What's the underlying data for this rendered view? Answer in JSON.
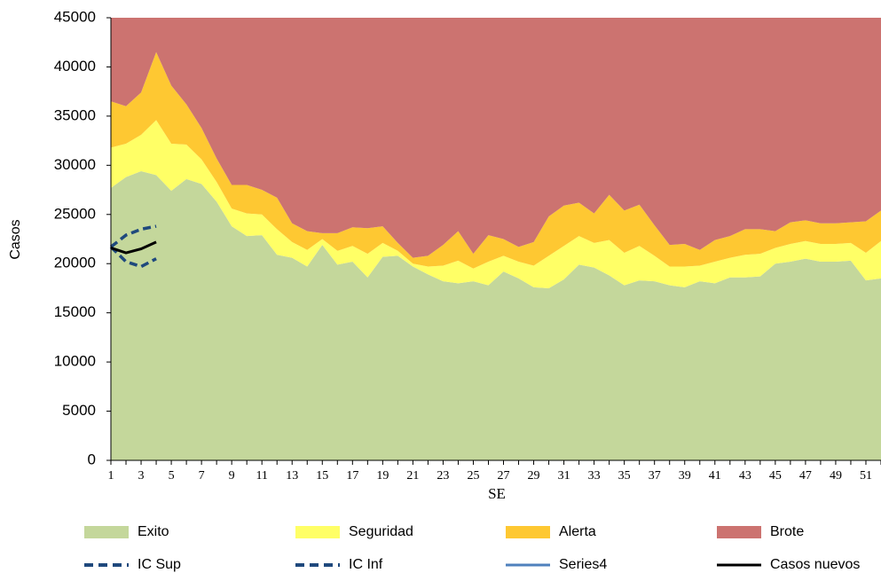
{
  "chart_data": {
    "type": "area",
    "ylabel": "Casos",
    "xlabel": "SE",
    "x": [
      1,
      2,
      3,
      4,
      5,
      6,
      7,
      8,
      9,
      10,
      11,
      12,
      13,
      14,
      15,
      16,
      17,
      18,
      19,
      20,
      21,
      22,
      23,
      24,
      25,
      26,
      27,
      28,
      29,
      30,
      31,
      32,
      33,
      34,
      35,
      36,
      37,
      38,
      39,
      40,
      41,
      42,
      43,
      44,
      45,
      46,
      47,
      48,
      49,
      50,
      51,
      52
    ],
    "xlim": [
      1,
      52
    ],
    "xticks": [
      1,
      3,
      5,
      7,
      9,
      11,
      13,
      15,
      17,
      19,
      21,
      23,
      25,
      27,
      29,
      31,
      33,
      35,
      37,
      39,
      41,
      43,
      45,
      47,
      49,
      51
    ],
    "ylim": [
      0,
      45000
    ],
    "yticks": [
      0,
      5000,
      10000,
      15000,
      20000,
      25000,
      30000,
      35000,
      40000,
      45000
    ],
    "series": [
      {
        "name": "Exito",
        "kind": "area",
        "color": "#c4d79b",
        "values": [
          27700,
          28800,
          29400,
          29000,
          27400,
          28600,
          28100,
          26300,
          23800,
          22800,
          22900,
          20900,
          20600,
          19700,
          21900,
          19900,
          20200,
          18600,
          20700,
          20800,
          19700,
          18900,
          18200,
          18000,
          18200,
          17800,
          19200,
          18500,
          17600,
          17500,
          18400,
          19900,
          19600,
          18800,
          17800,
          18300,
          18200,
          17800,
          17600,
          18200,
          18000,
          18600,
          18600,
          18700,
          20000,
          20200,
          20500,
          20200,
          20200,
          20300,
          18300,
          18500
        ]
      },
      {
        "name": "Seguridad",
        "kind": "area",
        "color": "#ffff66",
        "values": [
          4100,
          3400,
          3700,
          5600,
          4800,
          3500,
          2500,
          2000,
          1800,
          2300,
          2100,
          2600,
          1600,
          1700,
          600,
          1400,
          1600,
          2400,
          1400,
          500,
          300,
          800,
          1600,
          2300,
          1300,
          2400,
          1600,
          1700,
          2200,
          3300,
          3400,
          2900,
          2500,
          3600,
          3300,
          3500,
          2600,
          1900,
          2100,
          1600,
          2200,
          2000,
          2300,
          2300,
          1600,
          1800,
          1800,
          1800,
          1800,
          1800,
          2800,
          3800
        ]
      },
      {
        "name": "Alerta",
        "kind": "area",
        "color": "#fec832",
        "values": [
          4700,
          3800,
          4300,
          6900,
          5900,
          4100,
          3200,
          2400,
          2400,
          2900,
          2500,
          3200,
          1900,
          1900,
          600,
          1800,
          1900,
          2600,
          1700,
          800,
          600,
          1100,
          2100,
          3000,
          1500,
          2700,
          1700,
          1500,
          2400,
          4000,
          4100,
          3400,
          3000,
          4600,
          4300,
          4200,
          3100,
          2200,
          2300,
          1600,
          2200,
          2200,
          2600,
          2500,
          1700,
          2200,
          2100,
          2100,
          2100,
          2100,
          3200,
          3100
        ]
      },
      {
        "name": "Brote",
        "kind": "area",
        "color": "#cc7370",
        "values": [
          8500,
          9000,
          7600,
          3500,
          6900,
          8800,
          11200,
          14300,
          17000,
          17000,
          17500,
          18300,
          20900,
          21700,
          21900,
          21900,
          21300,
          21400,
          21200,
          22900,
          24400,
          24200,
          23100,
          21700,
          24000,
          22100,
          22500,
          23300,
          22800,
          20200,
          19100,
          18800,
          19900,
          18000,
          19600,
          19000,
          21100,
          23100,
          23000,
          23600,
          22600,
          22200,
          21500,
          21500,
          21700,
          20800,
          20600,
          20900,
          20900,
          20800,
          20700,
          19600
        ]
      },
      {
        "name": "IC Sup",
        "kind": "line",
        "dash": true,
        "color": "#1f497d",
        "values": [
          21700,
          22900,
          23500,
          23800,
          null,
          null,
          null,
          null,
          null,
          null,
          null,
          null,
          null,
          null,
          null,
          null,
          null,
          null,
          null,
          null,
          null,
          null,
          null,
          null,
          null,
          null,
          null,
          null,
          null,
          null,
          null,
          null,
          null,
          null,
          null,
          null,
          null,
          null,
          null,
          null,
          null,
          null,
          null,
          null,
          null,
          null,
          null,
          null,
          null,
          null,
          null,
          null
        ]
      },
      {
        "name": "IC Inf",
        "kind": "line",
        "dash": true,
        "color": "#1f497d",
        "values": [
          21700,
          20200,
          19700,
          20500,
          null,
          null,
          null,
          null,
          null,
          null,
          null,
          null,
          null,
          null,
          null,
          null,
          null,
          null,
          null,
          null,
          null,
          null,
          null,
          null,
          null,
          null,
          null,
          null,
          null,
          null,
          null,
          null,
          null,
          null,
          null,
          null,
          null,
          null,
          null,
          null,
          null,
          null,
          null,
          null,
          null,
          null,
          null,
          null,
          null,
          null,
          null,
          null
        ]
      },
      {
        "name": "Series4",
        "kind": "line",
        "dash": false,
        "color": "#4f81bd",
        "values": [
          null,
          null,
          null,
          null,
          null,
          null,
          null,
          null,
          null,
          null,
          null,
          null,
          null,
          null,
          null,
          null,
          null,
          null,
          null,
          null,
          null,
          null,
          null,
          null,
          null,
          null,
          null,
          null,
          null,
          null,
          null,
          null,
          null,
          null,
          null,
          null,
          null,
          null,
          null,
          null,
          null,
          null,
          null,
          null,
          null,
          null,
          null,
          null,
          null,
          null,
          null,
          null
        ]
      },
      {
        "name": "Casos nuevos",
        "kind": "line",
        "dash": false,
        "color": "#000000",
        "values": [
          21600,
          21100,
          21500,
          22200,
          null,
          null,
          null,
          null,
          null,
          null,
          null,
          null,
          null,
          null,
          null,
          null,
          null,
          null,
          null,
          null,
          null,
          null,
          null,
          null,
          null,
          null,
          null,
          null,
          null,
          null,
          null,
          null,
          null,
          null,
          null,
          null,
          null,
          null,
          null,
          null,
          null,
          null,
          null,
          null,
          null,
          null,
          null,
          null,
          null,
          null,
          null,
          null
        ]
      }
    ]
  }
}
